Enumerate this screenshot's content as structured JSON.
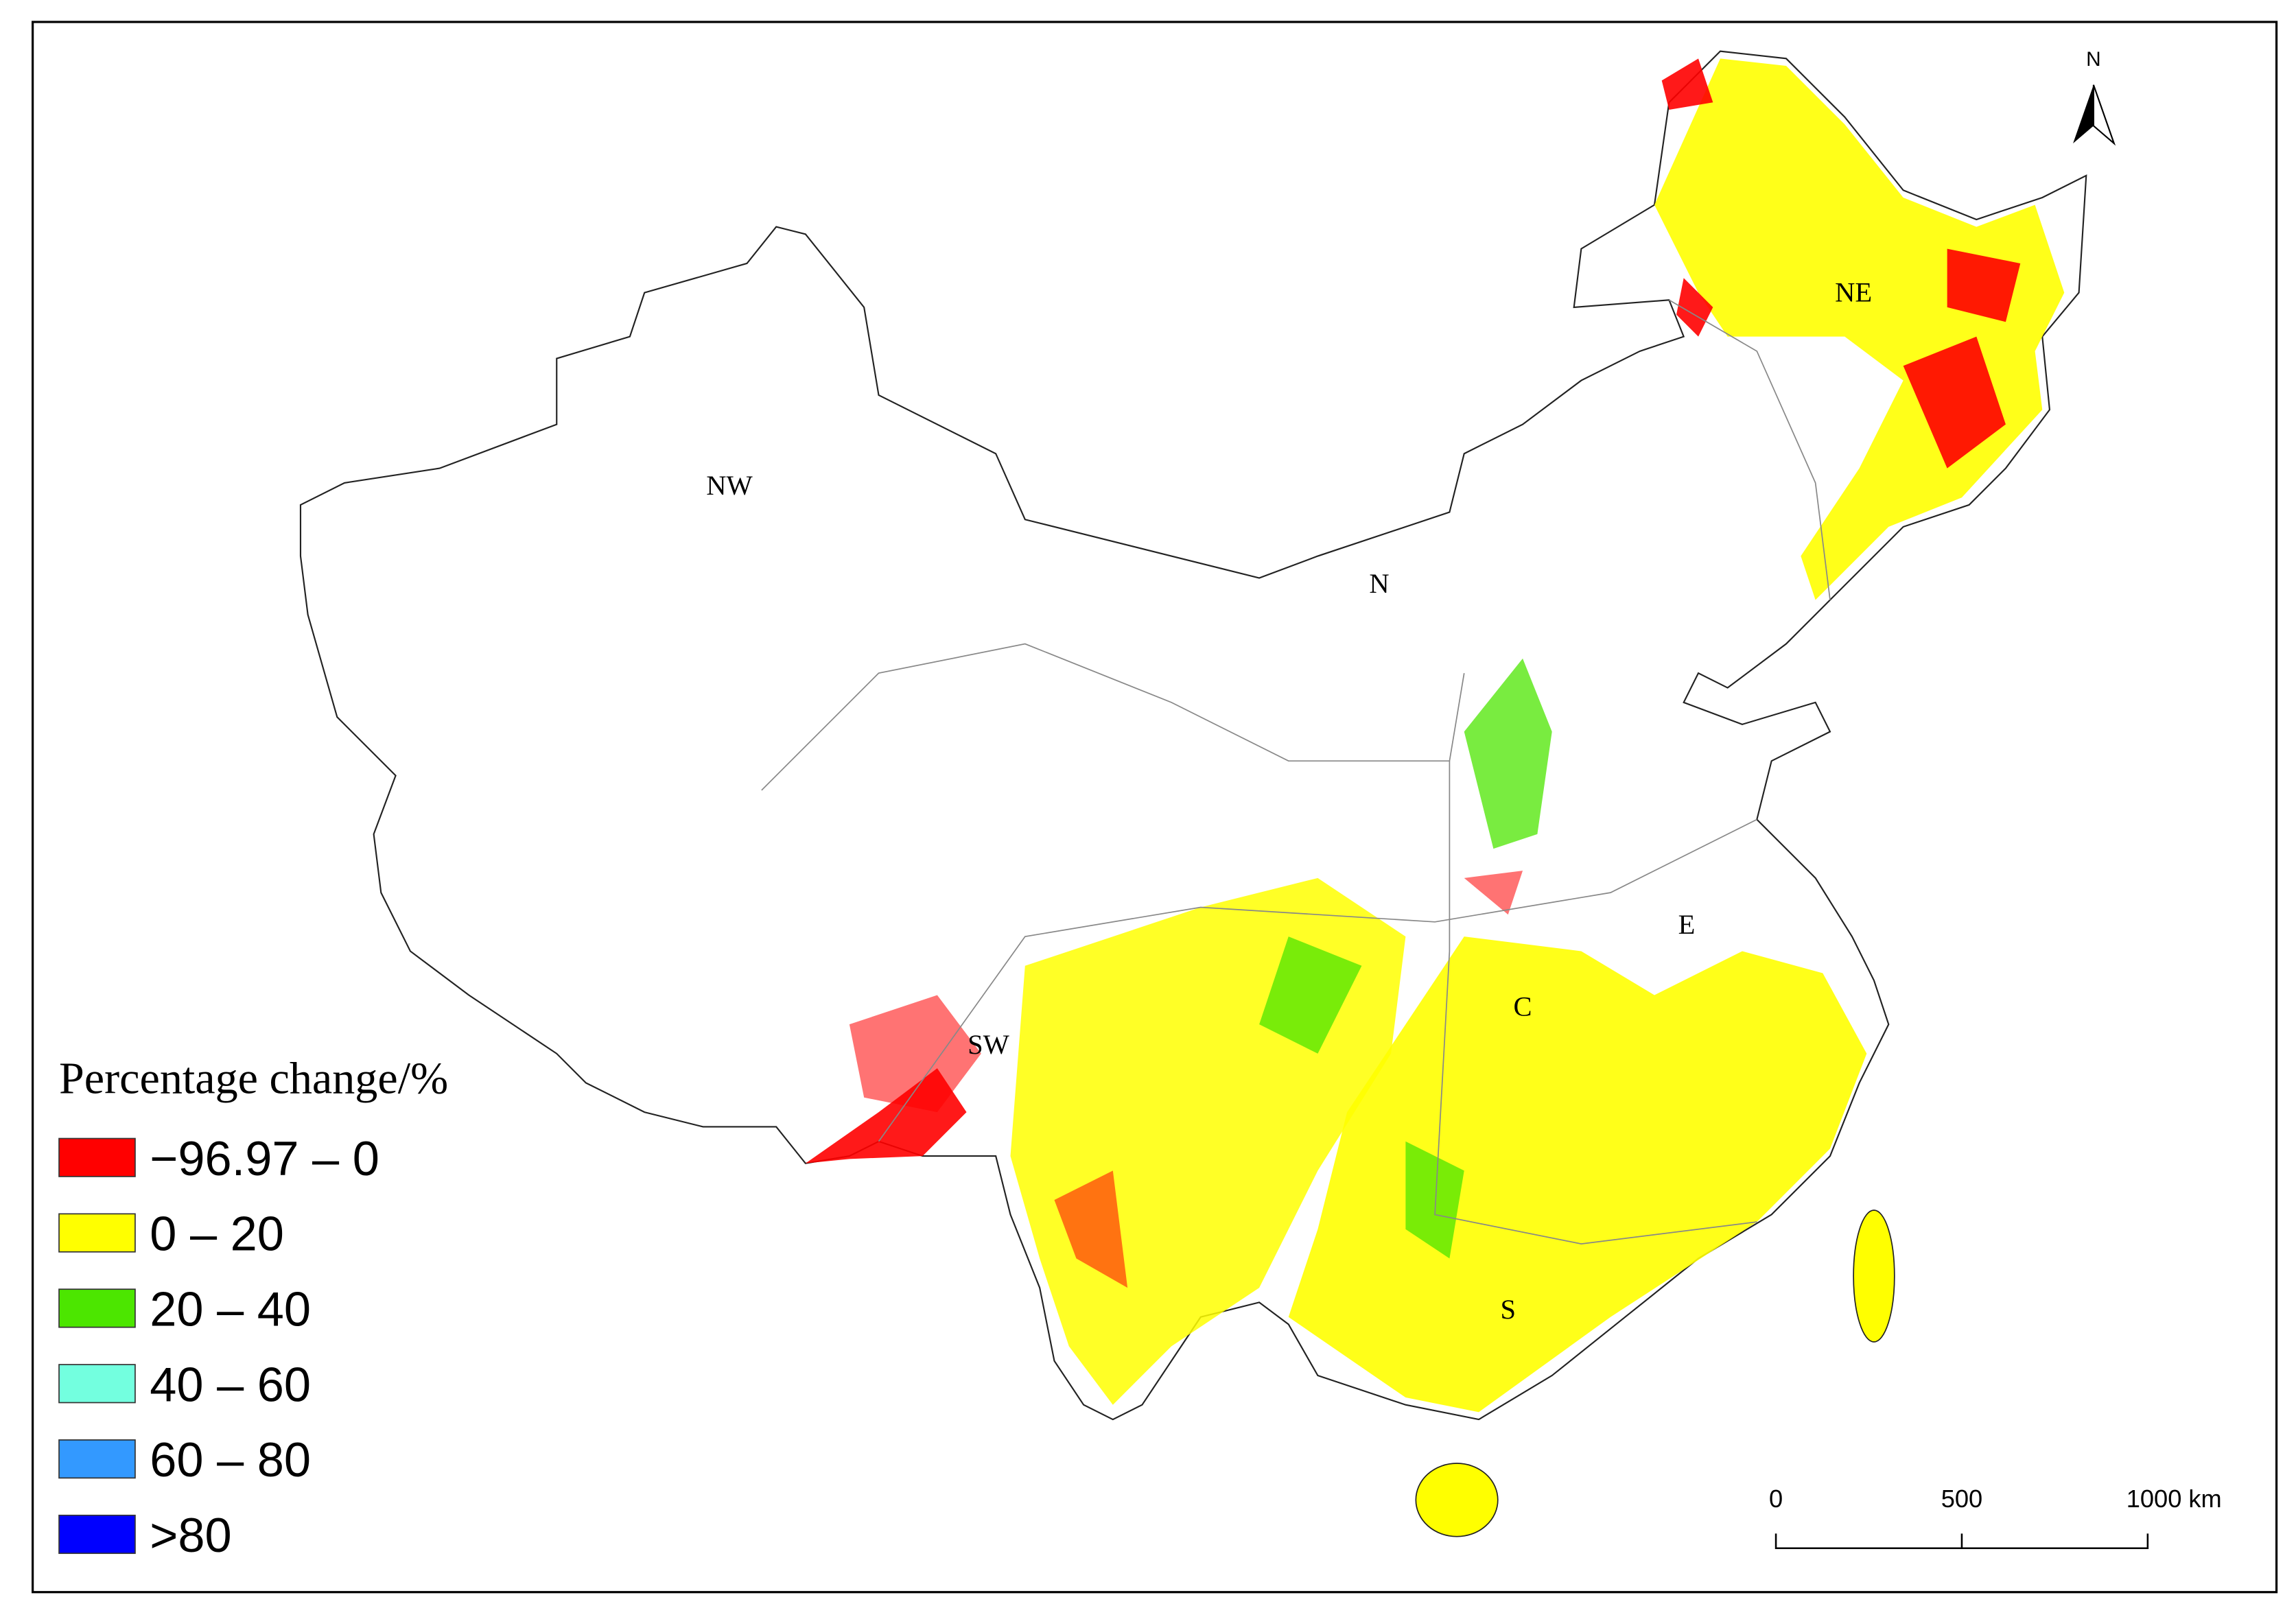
{
  "legend": {
    "title": "Percentage change/%",
    "items": [
      {
        "label": "−96.97 – 0",
        "color": "#ff0000"
      },
      {
        "label": "0 – 20",
        "color": "#ffff00"
      },
      {
        "label": "20 – 40",
        "color": "#4ce600"
      },
      {
        "label": "40 – 60",
        "color": "#73ffdf"
      },
      {
        "label": "60 – 80",
        "color": "#3399ff"
      },
      {
        "label": ">80",
        "color": "#0000ff"
      }
    ]
  },
  "regions": [
    {
      "label": "NW"
    },
    {
      "label": "N"
    },
    {
      "label": "NE"
    },
    {
      "label": "SW"
    },
    {
      "label": "C"
    },
    {
      "label": "E"
    },
    {
      "label": "S"
    }
  ],
  "north_arrow": "N",
  "scale_bar": [
    "0",
    "500",
    "1000 km"
  ]
}
